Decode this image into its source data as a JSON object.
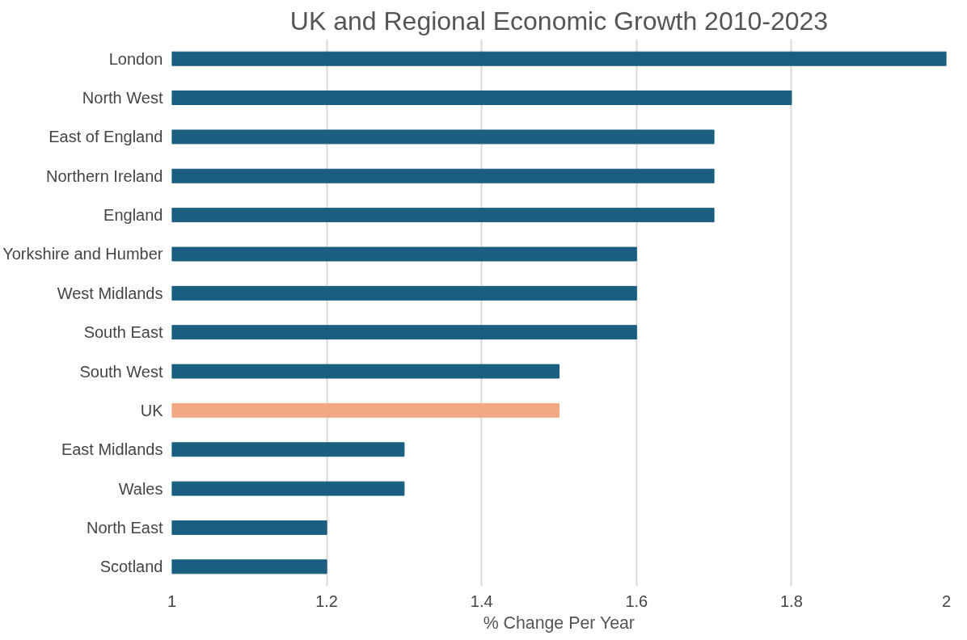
{
  "chart_data": {
    "type": "bar",
    "orientation": "horizontal",
    "title": "UK and Regional Economic Growth 2010-2023",
    "xlabel": "% Change Per Year",
    "categories": [
      "London",
      "North West",
      "East of England",
      "Northern Ireland",
      "England",
      "Yorkshire and Humber",
      "West Midlands",
      "South East",
      "South West",
      "UK",
      "East Midlands",
      "Wales",
      "North East",
      "Scotland"
    ],
    "values": [
      2,
      1.8,
      1.7,
      1.7,
      1.7,
      1.6,
      1.6,
      1.6,
      1.5,
      1.5,
      1.3,
      1.3,
      1.2,
      1.2
    ],
    "colors": [
      "#1a5e80",
      "#1a5e80",
      "#1a5e80",
      "#1a5e80",
      "#1a5e80",
      "#1a5e80",
      "#1a5e80",
      "#1a5e80",
      "#1a5e80",
      "#f2a983",
      "#1a5e80",
      "#1a5e80",
      "#1a5e80",
      "#1a5e80"
    ],
    "xlim": [
      1,
      2
    ],
    "xticks": [
      1,
      1.2,
      1.4,
      1.6,
      1.8,
      2
    ],
    "grid": "x"
  }
}
